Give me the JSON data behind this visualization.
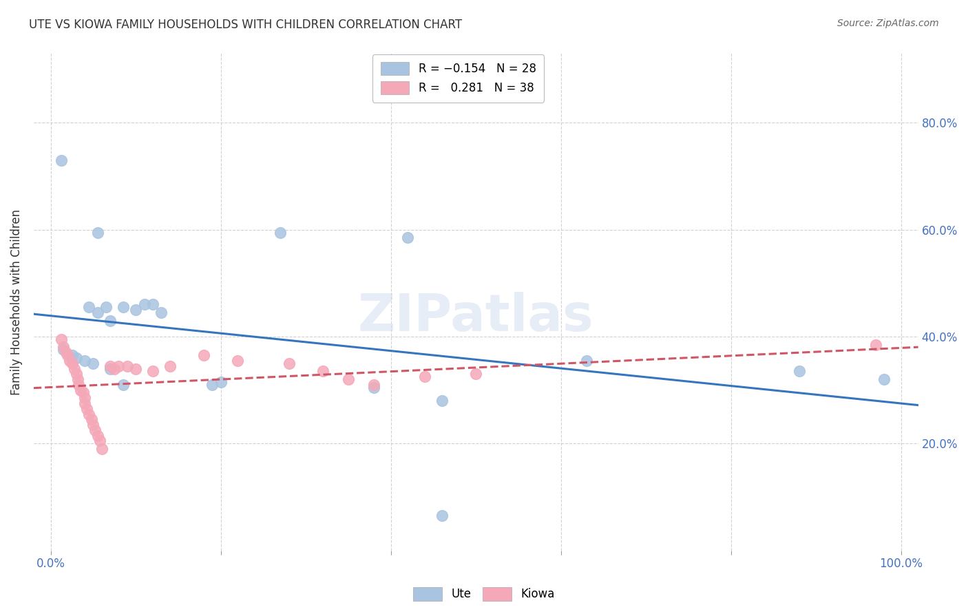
{
  "title": "UTE VS KIOWA FAMILY HOUSEHOLDS WITH CHILDREN CORRELATION CHART",
  "source": "Source: ZipAtlas.com",
  "ylabel": "Family Households with Children",
  "xlim": [
    -0.02,
    1.02
  ],
  "ylim": [
    0.0,
    0.93
  ],
  "xtick_grid": [
    0.0,
    0.2,
    0.4,
    0.6,
    0.8,
    1.0
  ],
  "xticklabels_show": [
    "0.0%",
    "",
    "",
    "",
    "",
    "100.0%"
  ],
  "ytick_grid": [
    0.2,
    0.4,
    0.6,
    0.8
  ],
  "yticklabels_right": [
    "20.0%",
    "40.0%",
    "60.0%",
    "80.0%"
  ],
  "ute_color": "#a8c4e0",
  "kiowa_color": "#f4a8b8",
  "ute_line_color": "#3575c0",
  "kiowa_line_color": "#d05565",
  "ute_R": -0.154,
  "kiowa_R": 0.281,
  "ute_N": 28,
  "kiowa_N": 38,
  "watermark": "ZIPatlas",
  "ute_points": [
    [
      0.012,
      0.73
    ],
    [
      0.055,
      0.595
    ],
    [
      0.27,
      0.595
    ],
    [
      0.42,
      0.585
    ],
    [
      0.045,
      0.455
    ],
    [
      0.055,
      0.445
    ],
    [
      0.065,
      0.455
    ],
    [
      0.07,
      0.43
    ],
    [
      0.085,
      0.455
    ],
    [
      0.1,
      0.45
    ],
    [
      0.11,
      0.46
    ],
    [
      0.12,
      0.46
    ],
    [
      0.13,
      0.445
    ],
    [
      0.015,
      0.375
    ],
    [
      0.025,
      0.365
    ],
    [
      0.03,
      0.36
    ],
    [
      0.04,
      0.355
    ],
    [
      0.05,
      0.35
    ],
    [
      0.07,
      0.34
    ],
    [
      0.085,
      0.31
    ],
    [
      0.19,
      0.31
    ],
    [
      0.2,
      0.315
    ],
    [
      0.38,
      0.305
    ],
    [
      0.46,
      0.28
    ],
    [
      0.46,
      0.065
    ],
    [
      0.63,
      0.355
    ],
    [
      0.88,
      0.335
    ],
    [
      0.98,
      0.32
    ]
  ],
  "kiowa_points": [
    [
      0.012,
      0.395
    ],
    [
      0.015,
      0.38
    ],
    [
      0.018,
      0.37
    ],
    [
      0.02,
      0.365
    ],
    [
      0.022,
      0.355
    ],
    [
      0.025,
      0.35
    ],
    [
      0.028,
      0.34
    ],
    [
      0.03,
      0.33
    ],
    [
      0.032,
      0.32
    ],
    [
      0.033,
      0.31
    ],
    [
      0.035,
      0.3
    ],
    [
      0.038,
      0.295
    ],
    [
      0.04,
      0.285
    ],
    [
      0.04,
      0.275
    ],
    [
      0.042,
      0.265
    ],
    [
      0.045,
      0.255
    ],
    [
      0.048,
      0.245
    ],
    [
      0.05,
      0.235
    ],
    [
      0.052,
      0.225
    ],
    [
      0.055,
      0.215
    ],
    [
      0.058,
      0.205
    ],
    [
      0.06,
      0.19
    ],
    [
      0.07,
      0.345
    ],
    [
      0.075,
      0.34
    ],
    [
      0.08,
      0.345
    ],
    [
      0.09,
      0.345
    ],
    [
      0.1,
      0.34
    ],
    [
      0.12,
      0.335
    ],
    [
      0.14,
      0.345
    ],
    [
      0.18,
      0.365
    ],
    [
      0.22,
      0.355
    ],
    [
      0.28,
      0.35
    ],
    [
      0.32,
      0.335
    ],
    [
      0.35,
      0.32
    ],
    [
      0.38,
      0.31
    ],
    [
      0.44,
      0.325
    ],
    [
      0.5,
      0.33
    ],
    [
      0.97,
      0.385
    ]
  ]
}
